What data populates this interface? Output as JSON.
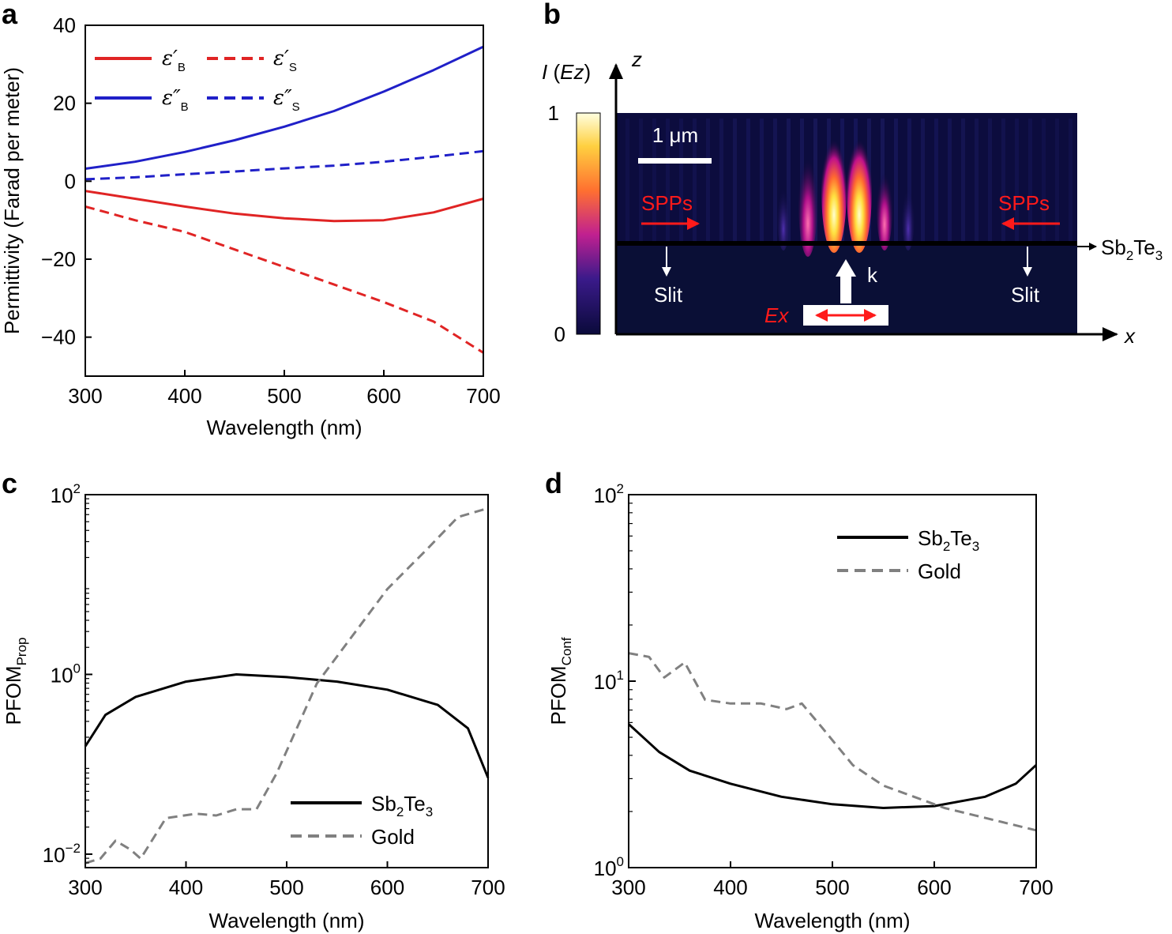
{
  "panels": {
    "a": "a",
    "b": "b",
    "c": "c",
    "d": "d"
  },
  "colors": {
    "red": "#e02424",
    "blue": "#2020c8",
    "black": "#000000",
    "gray": "#808080"
  },
  "chart_data": [
    {
      "panel": "a",
      "type": "line",
      "title": "",
      "xlabel": "Wavelength (nm)",
      "ylabel": "Permittivity (Farad per meter)",
      "xlim": [
        300,
        700
      ],
      "ylim": [
        -50,
        40
      ],
      "xticks": [
        300,
        400,
        500,
        600,
        700
      ],
      "yticks": [
        40,
        20,
        0,
        -20,
        -40
      ],
      "ytick_labels": [
        "40",
        "20",
        "0",
        "−20",
        "−40"
      ],
      "legend_position": "top-left",
      "series": [
        {
          "name": "ε′",
          "sub": "B",
          "color": "#e02424",
          "style": "solid",
          "x": [
            300,
            350,
            400,
            450,
            500,
            550,
            600,
            650,
            700
          ],
          "y": [
            -2.5,
            -4.5,
            -6.5,
            -8.3,
            -9.5,
            -10.2,
            -10.0,
            -8.0,
            -4.5
          ]
        },
        {
          "name": "ε′",
          "sub": "S",
          "color": "#e02424",
          "style": "dashed",
          "x": [
            300,
            350,
            400,
            450,
            500,
            550,
            600,
            650,
            700
          ],
          "y": [
            -6.5,
            -10,
            -13,
            -17.5,
            -22,
            -26.5,
            -31,
            -36,
            -44
          ]
        },
        {
          "name": "ε″",
          "sub": "B",
          "color": "#2020c8",
          "style": "solid",
          "x": [
            300,
            350,
            400,
            450,
            500,
            550,
            600,
            650,
            700
          ],
          "y": [
            3.2,
            5,
            7.5,
            10.5,
            14,
            18,
            23,
            28.5,
            34.5
          ]
        },
        {
          "name": "ε″",
          "sub": "S",
          "color": "#2020c8",
          "style": "dashed",
          "x": [
            300,
            350,
            400,
            450,
            500,
            550,
            600,
            650,
            700
          ],
          "y": [
            0.5,
            1,
            1.8,
            2.5,
            3.3,
            4,
            5,
            6.3,
            7.7
          ]
        }
      ]
    },
    {
      "panel": "c",
      "type": "line",
      "title": "",
      "xlabel": "Wavelength (nm)",
      "ylabel": "PFOM",
      "ylabel_sub": "Prop",
      "yscale": "log",
      "xlim": [
        300,
        700
      ],
      "ylim_exp": [
        -2.15,
        2
      ],
      "xticks": [
        300,
        400,
        500,
        600,
        700
      ],
      "yticks_exp": [
        2,
        0,
        -2
      ],
      "legend_position": "bottom-right",
      "series": [
        {
          "name": "Sb",
          "name_sub": "2",
          "name_mid": "Te",
          "name_sub2": "3",
          "color": "#000000",
          "style": "solid",
          "x": [
            300,
            320,
            350,
            400,
            450,
            500,
            550,
            600,
            650,
            680,
            700
          ],
          "y_exp": [
            -0.8,
            -0.45,
            -0.25,
            -0.08,
            0,
            -0.03,
            -0.08,
            -0.17,
            -0.34,
            -0.6,
            -1.15
          ]
        },
        {
          "name": "Gold",
          "color": "#808080",
          "style": "dashed",
          "x": [
            300,
            315,
            330,
            345,
            355,
            380,
            410,
            430,
            450,
            470,
            490,
            510,
            530,
            560,
            600,
            640,
            670,
            700
          ],
          "y_exp": [
            -2.1,
            -2.05,
            -1.85,
            -1.95,
            -2.05,
            -1.6,
            -1.55,
            -1.57,
            -1.5,
            -1.5,
            -1.1,
            -0.6,
            -0.1,
            0.35,
            0.95,
            1.4,
            1.75,
            1.85
          ]
        }
      ]
    },
    {
      "panel": "d",
      "type": "line",
      "title": "",
      "xlabel": "Wavelength (nm)",
      "ylabel": "PFOM",
      "ylabel_sub": "Conf",
      "yscale": "log",
      "xlim": [
        300,
        700
      ],
      "ylim_exp": [
        0,
        2
      ],
      "xticks": [
        300,
        400,
        500,
        600,
        700
      ],
      "yticks_exp": [
        2,
        1,
        0
      ],
      "legend_position": "top-right",
      "series": [
        {
          "name": "Sb",
          "name_sub": "2",
          "name_mid": "Te",
          "name_sub2": "3",
          "color": "#000000",
          "style": "solid",
          "x": [
            300,
            330,
            360,
            400,
            450,
            500,
            550,
            600,
            650,
            680,
            700
          ],
          "y_exp": [
            0.77,
            0.62,
            0.52,
            0.45,
            0.38,
            0.34,
            0.32,
            0.33,
            0.38,
            0.45,
            0.55
          ]
        },
        {
          "name": "Gold",
          "color": "#808080",
          "style": "dashed",
          "x": [
            300,
            320,
            335,
            355,
            375,
            400,
            430,
            455,
            470,
            490,
            520,
            550,
            580,
            610,
            640,
            670,
            700
          ],
          "y_exp": [
            1.15,
            1.13,
            1.02,
            1.1,
            0.9,
            0.88,
            0.88,
            0.85,
            0.88,
            0.75,
            0.55,
            0.44,
            0.38,
            0.32,
            0.28,
            0.24,
            0.2
          ]
        }
      ]
    }
  ],
  "panel_b": {
    "colorbar_label_I": "I",
    "colorbar_label_E": "Ez",
    "colorbar_max": "1",
    "colorbar_min": "0",
    "axis_z": "z",
    "axis_x": "x",
    "scale_bar": "1 μm",
    "spp_left": "SPPs",
    "spp_right": "SPPs",
    "slit_left": "Slit",
    "slit_right": "Slit",
    "k_label": "k",
    "ex_label": "Ex",
    "material_sb": "Sb",
    "material_sub2": "2",
    "material_te": "Te",
    "material_sub3": "3"
  }
}
